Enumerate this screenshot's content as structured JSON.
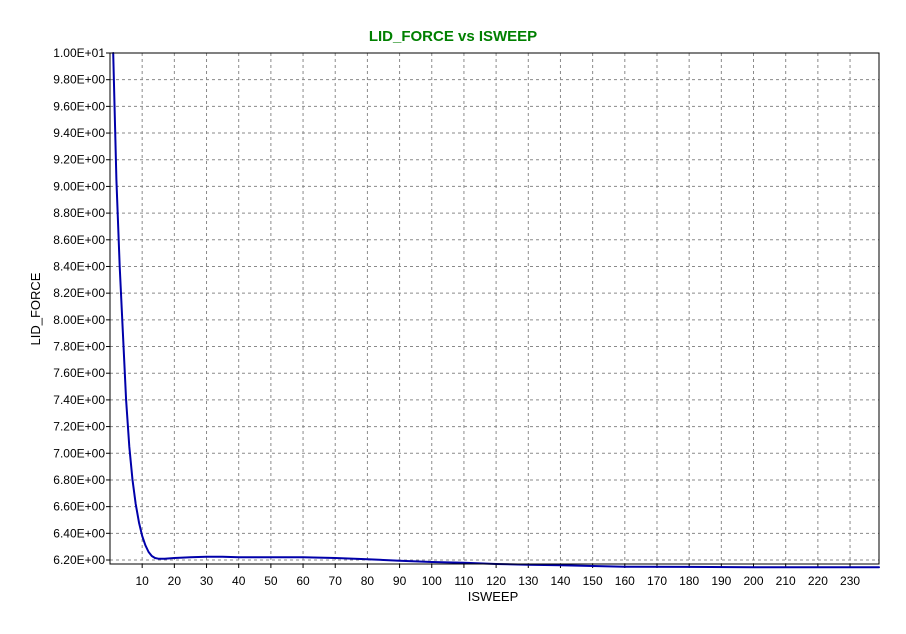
{
  "chart_data": {
    "type": "line",
    "title": "LID_FORCE vs ISWEEP",
    "xlabel": "ISWEEP",
    "ylabel": "LID_FORCE",
    "xlim": [
      0,
      239
    ],
    "ylim": [
      6.17,
      10.0
    ],
    "grid": true,
    "legend": "none",
    "x_ticks": [
      10,
      20,
      30,
      40,
      50,
      60,
      70,
      80,
      90,
      100,
      110,
      120,
      130,
      140,
      150,
      160,
      170,
      180,
      190,
      200,
      210,
      220,
      230
    ],
    "x_tick_labels": [
      "10",
      "20",
      "30",
      "40",
      "50",
      "60",
      "70",
      "80",
      "90",
      "100",
      "110",
      "120",
      "130",
      "140",
      "150",
      "160",
      "170",
      "180",
      "190",
      "200",
      "210",
      "220",
      "230"
    ],
    "y_ticks": [
      6.2,
      6.4,
      6.6,
      6.8,
      7.0,
      7.2,
      7.4,
      7.6,
      7.8,
      8.0,
      8.2,
      8.4,
      8.6,
      8.8,
      9.0,
      9.2,
      9.4,
      9.6,
      9.8,
      10.0
    ],
    "y_tick_labels": [
      "6.20E+00",
      "6.40E+00",
      "6.60E+00",
      "6.80E+00",
      "7.00E+00",
      "7.20E+00",
      "7.40E+00",
      "7.60E+00",
      "7.80E+00",
      "8.00E+00",
      "8.20E+00",
      "8.40E+00",
      "8.60E+00",
      "8.80E+00",
      "9.00E+00",
      "9.20E+00",
      "9.40E+00",
      "9.60E+00",
      "9.80E+00",
      "1.00E+01"
    ],
    "series": [
      {
        "color": "#0000aa",
        "x": [
          1,
          2,
          3,
          4,
          5,
          6,
          7,
          8,
          9,
          10,
          11,
          12,
          13,
          14,
          15,
          17,
          20,
          25,
          30,
          35,
          40,
          50,
          60,
          70,
          80,
          90,
          100,
          110,
          120,
          130,
          140,
          150,
          160,
          180,
          200,
          220,
          239
        ],
        "y": [
          10.0,
          9.05,
          8.4,
          7.9,
          7.4,
          7.05,
          6.8,
          6.62,
          6.48,
          6.38,
          6.31,
          6.26,
          6.23,
          6.215,
          6.21,
          6.21,
          6.215,
          6.22,
          6.225,
          6.225,
          6.22,
          6.22,
          6.22,
          6.215,
          6.205,
          6.195,
          6.185,
          6.18,
          6.17,
          6.165,
          6.16,
          6.155,
          6.15,
          6.148,
          6.146,
          6.145,
          6.145
        ]
      }
    ]
  },
  "colors": {
    "title": "#008000",
    "line": "#0000aa",
    "grid": "#8a8a8a",
    "axis": "#000000",
    "background": "#ffffff"
  }
}
